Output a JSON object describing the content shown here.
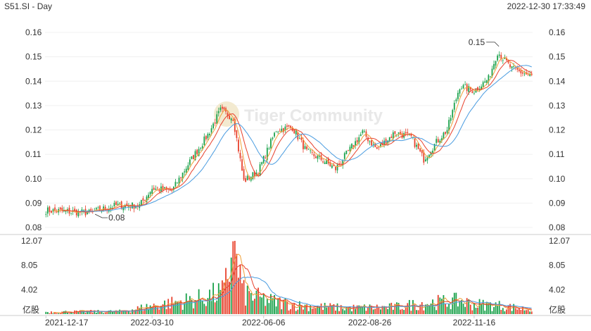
{
  "header": {
    "title": "S51.SI - Day",
    "timestamp": "2022-12-30 17:33:49"
  },
  "watermark": {
    "text": "Tiger Community"
  },
  "colors": {
    "up": "#19a14a",
    "down": "#e8412c",
    "ma_orange": "#f0a038",
    "ma_red": "#e8412c",
    "ma_blue": "#4a9ce0",
    "grid": "#f0f0f0",
    "axis": "#cccccc"
  },
  "chart_data": [
    {
      "type": "candlestick",
      "period": "Day",
      "ylim": [
        0.08,
        0.16
      ],
      "yticks": [
        "0.16",
        "0.15",
        "0.14",
        "0.13",
        "0.12",
        "0.11",
        "0.10",
        "0.09",
        "0.08"
      ],
      "xticks": [
        "2021-12-17",
        "2022-03-10",
        "2022-06-06",
        "2022-08-26",
        "2022-11-16"
      ],
      "close_anchors": [
        {
          "date": "2021-12-17",
          "value": 0.087
        },
        {
          "date": "2022-01-20",
          "value": 0.086
        },
        {
          "date": "2022-02-10",
          "value": 0.089
        },
        {
          "date": "2022-03-01",
          "value": 0.089
        },
        {
          "date": "2022-03-10",
          "value": 0.096
        },
        {
          "date": "2022-03-25",
          "value": 0.095
        },
        {
          "date": "2022-04-10",
          "value": 0.107
        },
        {
          "date": "2022-04-22",
          "value": 0.118
        },
        {
          "date": "2022-05-03",
          "value": 0.128
        },
        {
          "date": "2022-05-12",
          "value": 0.125
        },
        {
          "date": "2022-05-20",
          "value": 0.099
        },
        {
          "date": "2022-06-01",
          "value": 0.103
        },
        {
          "date": "2022-06-15",
          "value": 0.12
        },
        {
          "date": "2022-06-28",
          "value": 0.121
        },
        {
          "date": "2022-07-08",
          "value": 0.111
        },
        {
          "date": "2022-07-20",
          "value": 0.108
        },
        {
          "date": "2022-08-01",
          "value": 0.104
        },
        {
          "date": "2022-08-10",
          "value": 0.111
        },
        {
          "date": "2022-08-22",
          "value": 0.119
        },
        {
          "date": "2022-09-01",
          "value": 0.112
        },
        {
          "date": "2022-09-15",
          "value": 0.119
        },
        {
          "date": "2022-09-28",
          "value": 0.117
        },
        {
          "date": "2022-10-08",
          "value": 0.108
        },
        {
          "date": "2022-10-18",
          "value": 0.115
        },
        {
          "date": "2022-10-26",
          "value": 0.12
        },
        {
          "date": "2022-11-05",
          "value": 0.138
        },
        {
          "date": "2022-11-16",
          "value": 0.136
        },
        {
          "date": "2022-11-28",
          "value": 0.141
        },
        {
          "date": "2022-12-05",
          "value": 0.152
        },
        {
          "date": "2022-12-15",
          "value": 0.145
        },
        {
          "date": "2022-12-30",
          "value": 0.142
        }
      ],
      "annotations": [
        {
          "label": "0.08",
          "date": "2022-02-01",
          "value": 0.084
        },
        {
          "label": "0.15",
          "date": "2022-12-05",
          "value": 0.156
        }
      ],
      "moving_averages": [
        {
          "color": "ma_orange",
          "period": 5
        },
        {
          "color": "ma_red",
          "period": 10
        },
        {
          "color": "ma_blue",
          "period": 20
        }
      ]
    },
    {
      "type": "bar",
      "title": "volume",
      "ylim": [
        0,
        12.07
      ],
      "yticks": [
        "12.07",
        "8.05",
        "4.02"
      ],
      "unit_label": "亿股",
      "xticks": [
        "2021-12-17",
        "2022-03-10",
        "2022-06-06",
        "2022-08-26",
        "2022-11-16"
      ],
      "volume_anchors": [
        {
          "date": "2021-12-17",
          "value": 0.4
        },
        {
          "date": "2022-02-15",
          "value": 0.5
        },
        {
          "date": "2022-03-10",
          "value": 1.5
        },
        {
          "date": "2022-04-15",
          "value": 2.8
        },
        {
          "date": "2022-05-05",
          "value": 4.0
        },
        {
          "date": "2022-05-12",
          "value": 12.0
        },
        {
          "date": "2022-05-20",
          "value": 3.8
        },
        {
          "date": "2022-06-06",
          "value": 2.6
        },
        {
          "date": "2022-07-01",
          "value": 1.6
        },
        {
          "date": "2022-08-10",
          "value": 1.1
        },
        {
          "date": "2022-09-15",
          "value": 1.3
        },
        {
          "date": "2022-10-08",
          "value": 2.0
        },
        {
          "date": "2022-11-05",
          "value": 2.4
        },
        {
          "date": "2022-11-16",
          "value": 1.8
        },
        {
          "date": "2022-12-05",
          "value": 1.6
        },
        {
          "date": "2022-12-30",
          "value": 0.8
        }
      ]
    }
  ]
}
